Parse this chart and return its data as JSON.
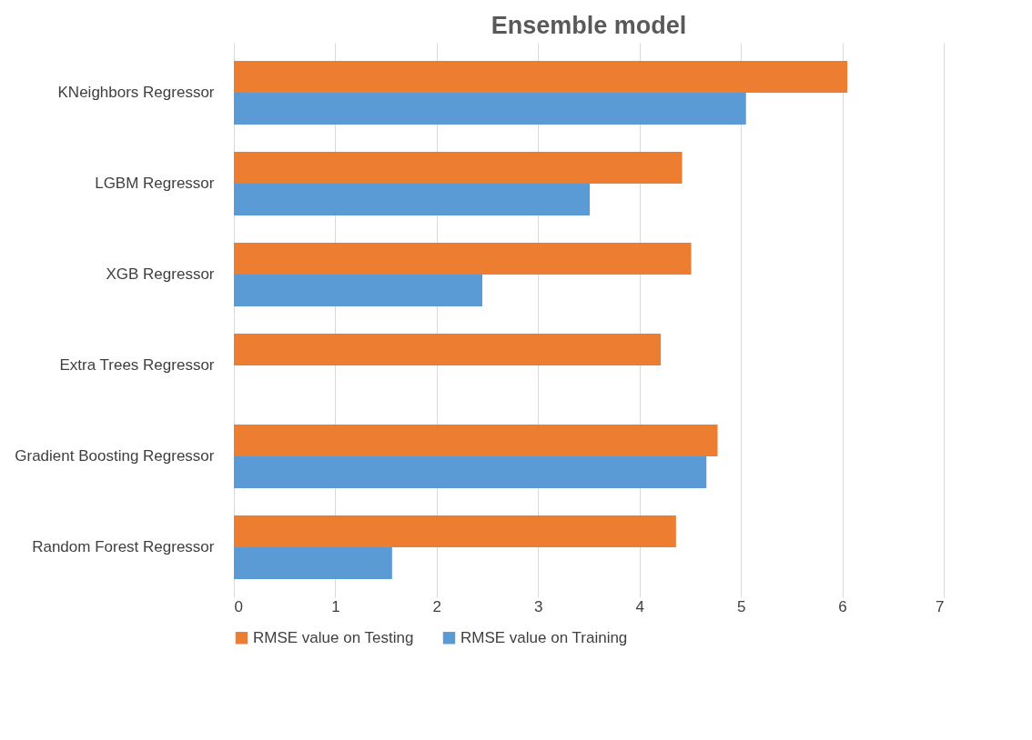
{
  "chart_data": {
    "type": "bar",
    "orientation": "horizontal",
    "title": "Ensemble model",
    "categories": [
      "KNeighbors Regressor",
      "LGBM Regressor",
      "XGB Regressor",
      "Extra Trees Regressor",
      "Gradient Boosting Regressor",
      "Random Forest Regressor"
    ],
    "series": [
      {
        "name": "RMSE value on Testing",
        "color": "#ed7d31",
        "values": [
          6.05,
          4.42,
          4.51,
          4.21,
          4.77,
          4.36
        ]
      },
      {
        "name": "RMSE value on Training",
        "color": "#5b9bd5",
        "values": [
          5.05,
          3.51,
          2.45,
          0,
          4.66,
          1.56
        ]
      }
    ],
    "xlim": [
      0,
      7
    ],
    "xticks": [
      0,
      1,
      2,
      3,
      4,
      5,
      6,
      7
    ],
    "grid": "x",
    "legend": "bottom"
  }
}
